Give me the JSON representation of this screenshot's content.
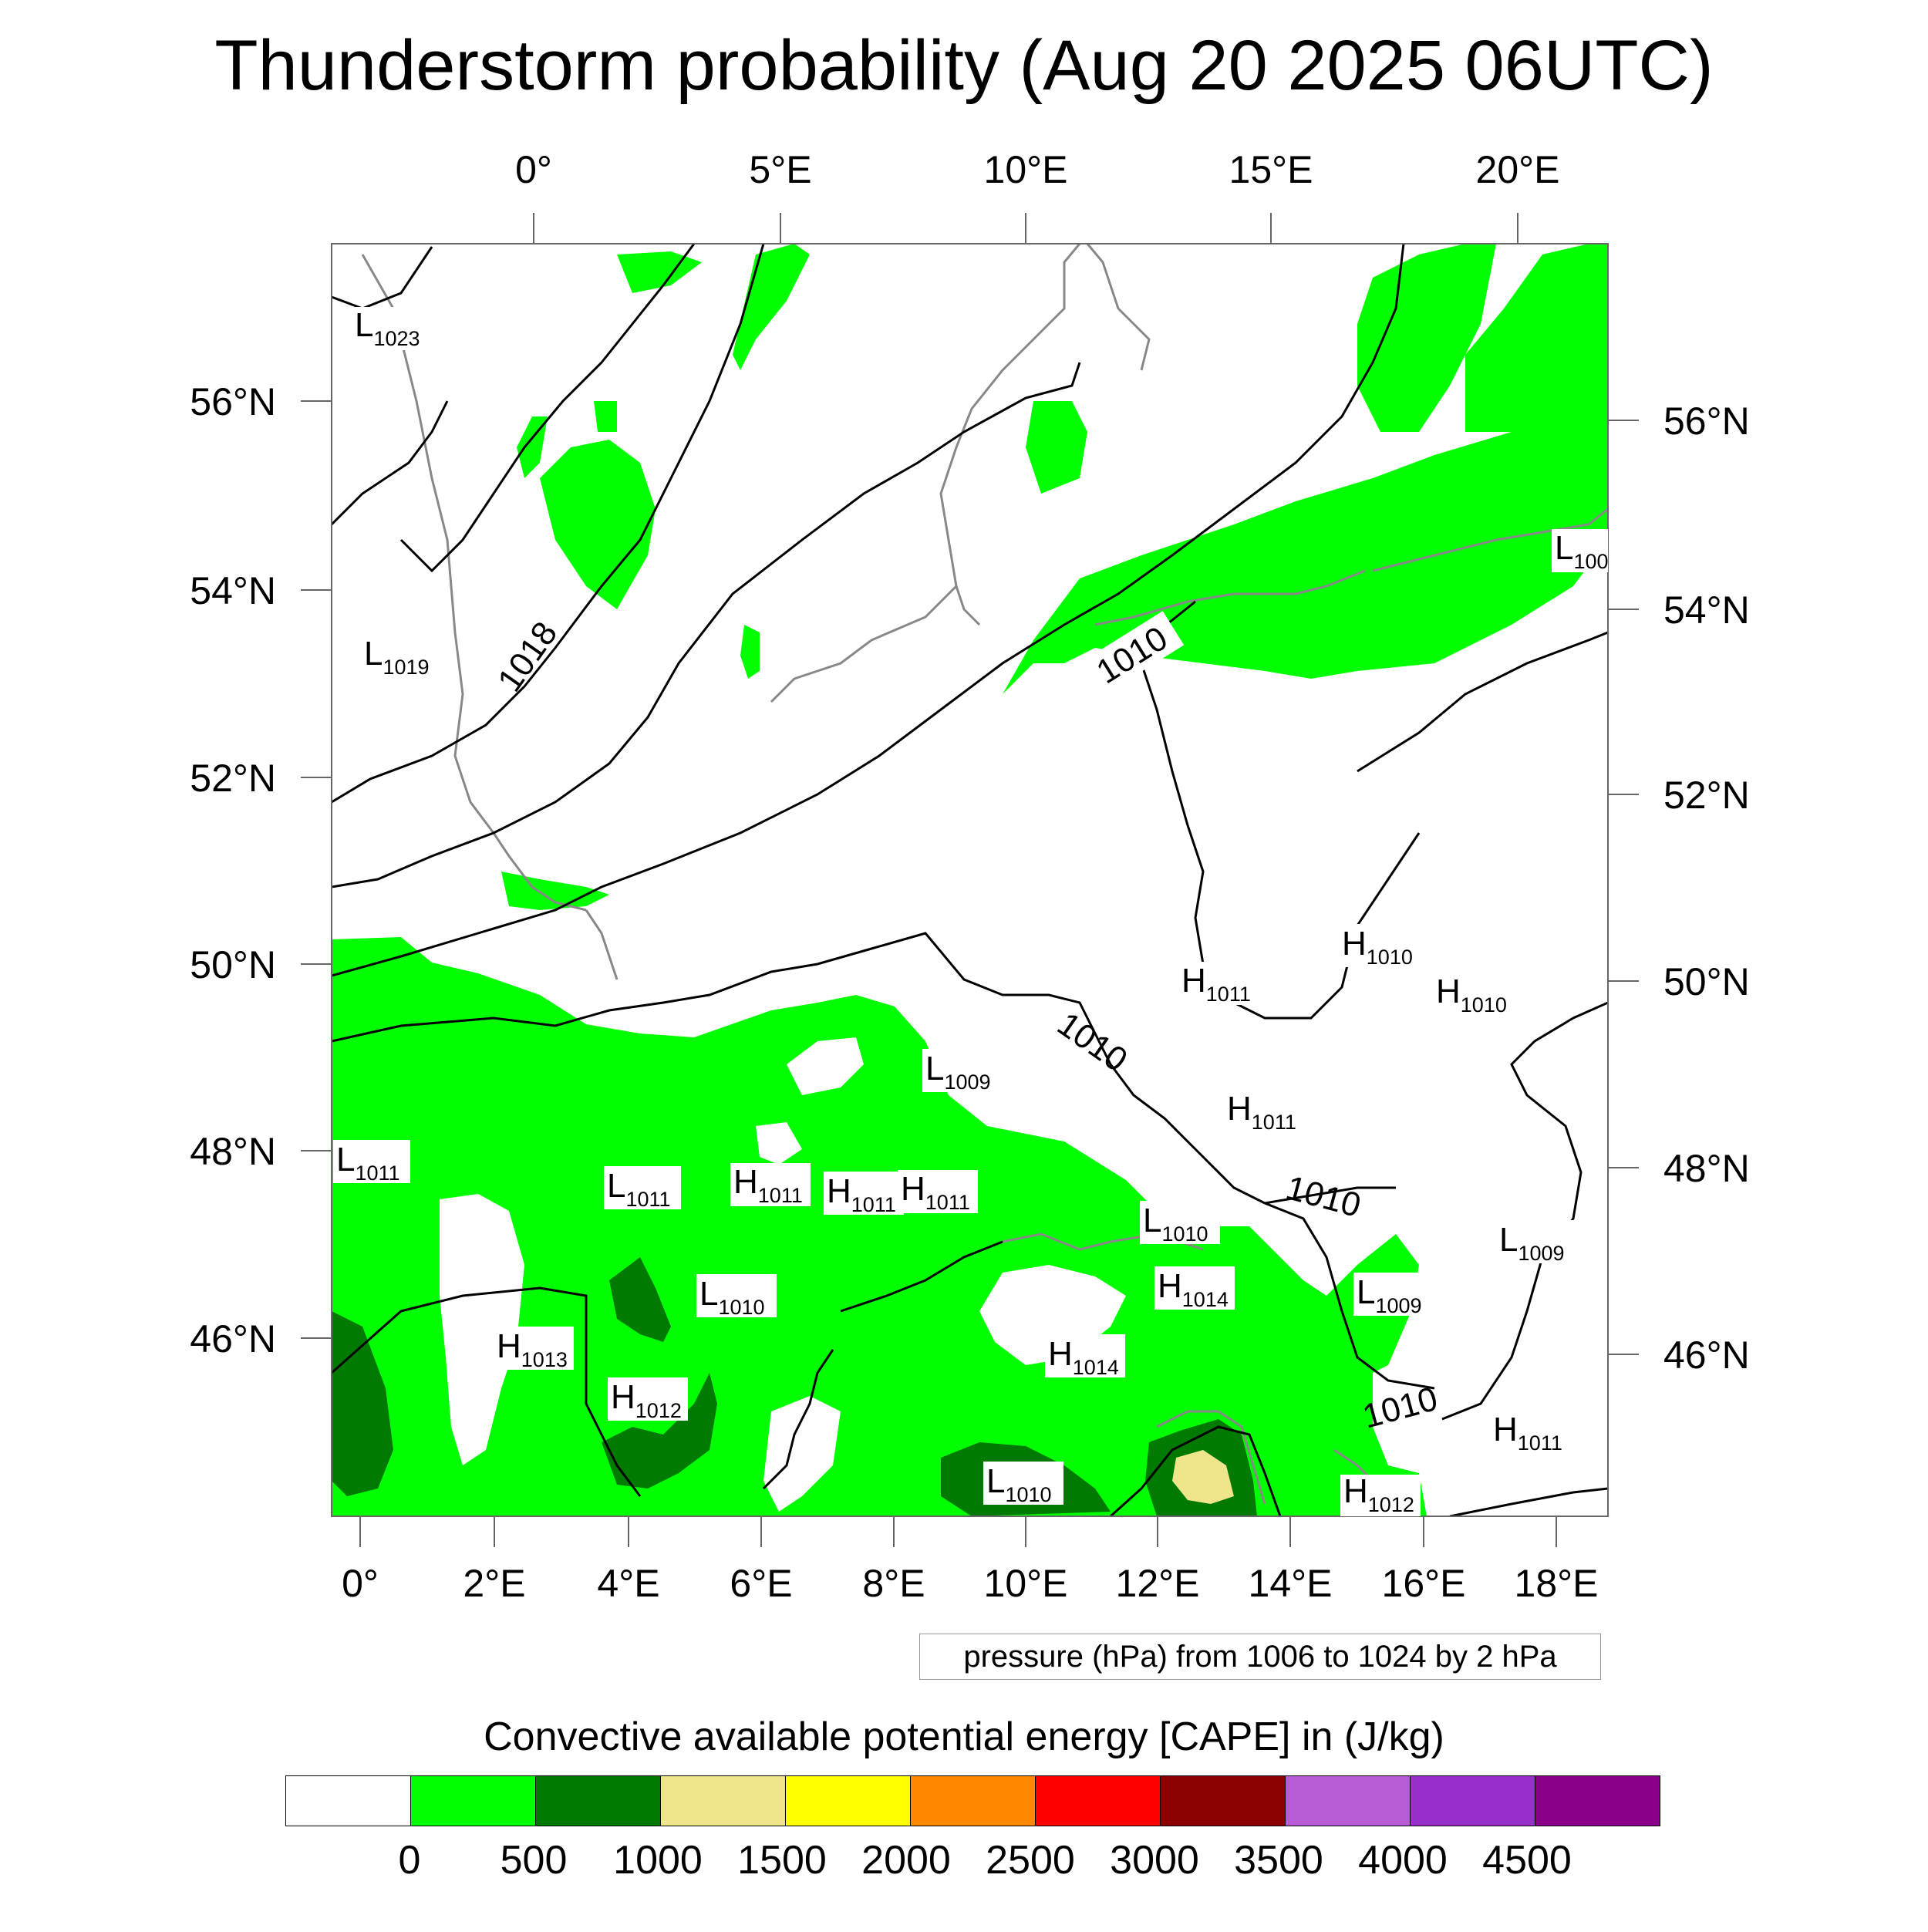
{
  "title": "Thunderstorm probability (Aug 20 2025 06UTC)",
  "map": {
    "top_lon_labels": [
      "0°",
      "5°E",
      "10°E",
      "15°E",
      "20°E"
    ],
    "bottom_lon_labels": [
      "0°",
      "2°E",
      "4°E",
      "6°E",
      "8°E",
      "10°E",
      "12°E",
      "14°E",
      "16°E",
      "18°E"
    ],
    "left_lat_labels": [
      "56°N",
      "54°N",
      "52°N",
      "50°N",
      "48°N",
      "46°N"
    ],
    "right_lat_labels": [
      "56°N",
      "54°N",
      "52°N",
      "50°N",
      "48°N",
      "46°N"
    ],
    "isobar_labels": [
      "1018",
      "1010",
      "1010",
      "1010",
      "1010"
    ],
    "pressure_centers": [
      {
        "type": "L",
        "value": "1023"
      },
      {
        "type": "L",
        "value": "1019"
      },
      {
        "type": "L",
        "value": "1011"
      },
      {
        "type": "L",
        "value": "1011"
      },
      {
        "type": "H",
        "value": "1011"
      },
      {
        "type": "H",
        "value": "1011"
      },
      {
        "type": "H",
        "value": "1011"
      },
      {
        "type": "L",
        "value": "1010"
      },
      {
        "type": "H",
        "value": "1013"
      },
      {
        "type": "H",
        "value": "1012"
      },
      {
        "type": "L",
        "value": "1009"
      },
      {
        "type": "H",
        "value": "1011"
      },
      {
        "type": "H",
        "value": "1010"
      },
      {
        "type": "H",
        "value": "1010"
      },
      {
        "type": "H",
        "value": "1011"
      },
      {
        "type": "L",
        "value": "1010"
      },
      {
        "type": "H",
        "value": "1014"
      },
      {
        "type": "H",
        "value": "1014"
      },
      {
        "type": "L",
        "value": "1009"
      },
      {
        "type": "L",
        "value": "1009"
      },
      {
        "type": "L",
        "value": "1010"
      },
      {
        "type": "H",
        "value": "1011"
      },
      {
        "type": "H",
        "value": "1012"
      },
      {
        "type": "L",
        "value": "100"
      }
    ],
    "colors": {
      "cape_0_500": "#00ff00",
      "cape_500_1000": "#007a00",
      "cape_1000_1500": "#efe68c",
      "coastline": "#888888",
      "isobar": "#000000"
    }
  },
  "pressure_note": "pressure (hPa) from 1006 to 1024 by 2 hPa",
  "colorbar": {
    "title": "Convective available potential energy [CAPE] in (J/kg)",
    "colors": [
      "#ffffff",
      "#00ff00",
      "#007a00",
      "#efe68c",
      "#ffff00",
      "#ff8800",
      "#ff0000",
      "#8b0000",
      "#b85cd6",
      "#9930cc",
      "#8b008b"
    ],
    "ticks": [
      "0",
      "500",
      "1000",
      "1500",
      "2000",
      "2500",
      "3000",
      "3500",
      "4000",
      "4500"
    ]
  }
}
